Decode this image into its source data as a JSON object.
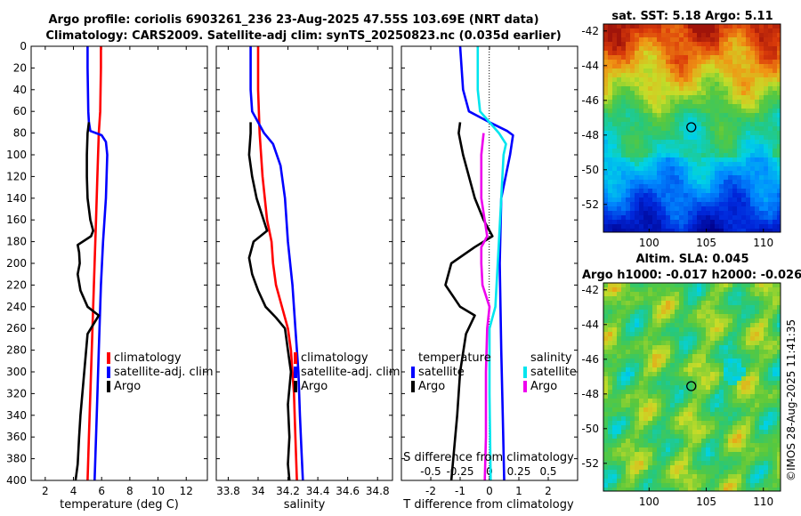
{
  "header": {
    "title_line1": "Argo profile: coriolis 6903261_236 23-Aug-2025 47.55S 103.69E (NRT data)",
    "title_line2": "Climatology: CARS2009. Satellite-adj clim: synTS_20250823.nc (0.035d earlier)"
  },
  "credit": "©IMOS 28-Aug-2025 11:41:35",
  "colors": {
    "climatology": "#ff0000",
    "satellite": "#0000ff",
    "argo": "#000000",
    "sat_salinity": "#00e5ee",
    "argo_salinity": "#ee00ee"
  },
  "chart_data": [
    {
      "id": "temperature",
      "type": "line",
      "xlabel": "temperature (deg C)",
      "xlim": [
        1,
        13.5
      ],
      "xticks": [
        "2",
        "4",
        "6",
        "8",
        "10",
        "12"
      ],
      "xtick_values": [
        2,
        4,
        6,
        8,
        10,
        12
      ],
      "ylim": [
        0,
        400
      ],
      "yticks": [
        "0",
        "20",
        "40",
        "60",
        "80",
        "100",
        "120",
        "140",
        "160",
        "180",
        "200",
        "220",
        "240",
        "260",
        "280",
        "300",
        "320",
        "340",
        "360",
        "380",
        "400"
      ],
      "ytick_values": [
        0,
        20,
        40,
        60,
        80,
        100,
        120,
        140,
        160,
        180,
        200,
        220,
        240,
        260,
        280,
        300,
        320,
        340,
        360,
        380,
        400
      ],
      "legend": [
        "climatology",
        "satellite-adj. clim",
        "Argo"
      ],
      "series": [
        {
          "name": "climatology",
          "color": "#ff0000",
          "x": [
            5.95,
            5.95,
            5.9,
            5.8,
            5.7,
            5.6,
            5.5,
            5.4,
            5.3,
            5.2,
            5.1,
            5.0
          ],
          "depth": [
            0,
            20,
            60,
            80,
            120,
            160,
            200,
            240,
            280,
            320,
            360,
            400
          ]
        },
        {
          "name": "satellite-adj. clim",
          "color": "#0000ff",
          "x": [
            5.0,
            5.0,
            5.05,
            5.1,
            5.2,
            6.0,
            6.3,
            6.4,
            6.3,
            6.1,
            5.95,
            5.8,
            5.65,
            5.5
          ],
          "depth": [
            0,
            20,
            60,
            70,
            78,
            82,
            88,
            100,
            140,
            180,
            220,
            280,
            340,
            400
          ]
        },
        {
          "name": "Argo",
          "color": "#000000",
          "x": [
            5.1,
            5.0,
            4.95,
            4.95,
            5.0,
            5.2,
            5.4,
            5.25,
            4.3,
            4.4,
            4.45,
            4.3,
            4.5,
            5.0,
            5.8,
            5.0,
            4.9,
            4.7,
            4.5,
            4.4,
            4.3,
            4.15
          ],
          "depth": [
            70,
            80,
            100,
            120,
            140,
            160,
            170,
            175,
            183,
            190,
            200,
            210,
            225,
            240,
            248,
            265,
            280,
            310,
            340,
            360,
            385,
            400
          ]
        }
      ]
    },
    {
      "id": "salinity",
      "type": "line",
      "xlabel": "salinity",
      "xlim": [
        33.72,
        34.9
      ],
      "xticks": [
        "33.8",
        "34",
        "34.2",
        "34.4",
        "34.6",
        "34.8"
      ],
      "xtick_values": [
        33.8,
        34.0,
        34.2,
        34.4,
        34.6,
        34.8
      ],
      "ylim": [
        0,
        400
      ],
      "legend": [
        "climatology",
        "satellite-adj. clim",
        "Argo"
      ],
      "series": [
        {
          "name": "climatology",
          "color": "#ff0000",
          "x": [
            34.0,
            34.0,
            34.01,
            34.03,
            34.06,
            34.09,
            34.1,
            34.12,
            34.16,
            34.2,
            34.22,
            34.24,
            34.25,
            34.26
          ],
          "depth": [
            0,
            40,
            80,
            120,
            160,
            180,
            200,
            220,
            240,
            260,
            280,
            320,
            360,
            400
          ]
        },
        {
          "name": "satellite-adj. clim",
          "color": "#0000ff",
          "x": [
            33.95,
            33.95,
            33.96,
            34.0,
            34.04,
            34.1,
            34.15,
            34.18,
            34.2,
            34.23,
            34.25,
            34.27,
            34.28,
            34.29,
            34.3
          ],
          "depth": [
            0,
            40,
            60,
            70,
            80,
            90,
            110,
            140,
            180,
            220,
            260,
            300,
            340,
            370,
            400
          ]
        },
        {
          "name": "Argo",
          "color": "#000000",
          "x": [
            33.95,
            33.95,
            33.94,
            33.96,
            33.99,
            34.06,
            33.97,
            33.94,
            33.96,
            34.0,
            34.05,
            34.12,
            34.18,
            34.2,
            34.22,
            34.2,
            34.21,
            34.2,
            34.21
          ],
          "depth": [
            70,
            80,
            100,
            120,
            140,
            170,
            180,
            195,
            210,
            225,
            240,
            250,
            260,
            280,
            300,
            330,
            360,
            385,
            400
          ]
        }
      ]
    },
    {
      "id": "difference",
      "type": "line",
      "xlabel": "T difference from climatology",
      "xlim": [
        -3,
        3
      ],
      "xticks": [
        "-2",
        "-1",
        "0",
        "1",
        "2"
      ],
      "xtick_values": [
        -2,
        -1,
        0,
        1,
        2
      ],
      "top_label": "S difference from climatology",
      "s_xticks": [
        "-0.5",
        "-0.25",
        "0",
        "0.25",
        "0.5"
      ],
      "s_xtick_values": [
        -0.5,
        -0.25,
        0,
        0.25,
        0.5
      ],
      "s_xlim": [
        -0.75,
        0.75
      ],
      "ylim": [
        0,
        400
      ],
      "legend_temperature_heading": "temperature",
      "legend_salinity_heading": "salinity",
      "legend": [
        "satellite",
        "Argo",
        "satellite",
        "Argo"
      ],
      "series": [
        {
          "name": "temperature satellite",
          "color": "#0000ff",
          "axis": "T",
          "x": [
            -1.0,
            -0.9,
            -0.7,
            0.0,
            0.6,
            0.8,
            0.7,
            0.4,
            0.35,
            0.4,
            0.45,
            0.5
          ],
          "depth": [
            0,
            40,
            60,
            70,
            78,
            82,
            100,
            140,
            200,
            280,
            340,
            400
          ]
        },
        {
          "name": "temperature Argo",
          "color": "#000000",
          "axis": "T",
          "x": [
            -1.0,
            -1.05,
            -0.9,
            -0.5,
            -0.2,
            0.1,
            -0.5,
            -1.3,
            -1.5,
            -1.0,
            -0.5,
            -0.8,
            -1.0,
            -1.1,
            -1.2,
            -1.3
          ],
          "depth": [
            70,
            80,
            100,
            140,
            160,
            175,
            185,
            200,
            220,
            240,
            248,
            265,
            300,
            340,
            370,
            400
          ]
        },
        {
          "name": "salinity satellite",
          "color": "#00e5ee",
          "axis": "S",
          "x": [
            -0.1,
            -0.1,
            -0.08,
            0.0,
            0.08,
            0.14,
            0.12,
            0.1,
            0.08,
            0.05,
            0.0,
            0.0,
            0.01
          ],
          "depth": [
            0,
            40,
            60,
            70,
            80,
            90,
            100,
            140,
            180,
            240,
            260,
            320,
            400
          ]
        },
        {
          "name": "salinity Argo",
          "color": "#ee00ee",
          "axis": "S",
          "x": [
            -0.05,
            -0.06,
            -0.07,
            -0.07,
            -0.02,
            -0.07,
            -0.07,
            -0.06,
            0.0,
            -0.02,
            -0.03,
            -0.03,
            -0.04
          ],
          "depth": [
            80,
            90,
            100,
            140,
            175,
            185,
            200,
            220,
            240,
            260,
            300,
            360,
            400
          ]
        }
      ]
    },
    {
      "id": "sst_map",
      "type": "heatmap",
      "title": "sat. SST: 5.18 Argo: 5.11",
      "xticks": [
        "100",
        "105",
        "110"
      ],
      "xtick_values": [
        100,
        105,
        110
      ],
      "yticks": [
        "-42",
        "-44",
        "-46",
        "-48",
        "-50",
        "-52"
      ],
      "ytick_values": [
        -42,
        -44,
        -46,
        -48,
        -50,
        -52
      ],
      "xlim": [
        96,
        111.5
      ],
      "ylim": [
        -53.6,
        -41.6
      ],
      "marker": [
        103.69,
        -47.55
      ]
    },
    {
      "id": "sla_map",
      "type": "heatmap",
      "title": "Altim. SLA: 0.045",
      "subtitle": "Argo h1000: -0.017 h2000: -0.026",
      "xticks": [
        "100",
        "105",
        "110"
      ],
      "xtick_values": [
        100,
        105,
        110
      ],
      "yticks": [
        "-42",
        "-44",
        "-46",
        "-48",
        "-50",
        "-52"
      ],
      "ytick_values": [
        -42,
        -44,
        -46,
        -48,
        -50,
        -52
      ],
      "xlim": [
        96,
        111.5
      ],
      "ylim": [
        -53.6,
        -41.6
      ],
      "marker": [
        103.69,
        -47.55
      ]
    }
  ]
}
